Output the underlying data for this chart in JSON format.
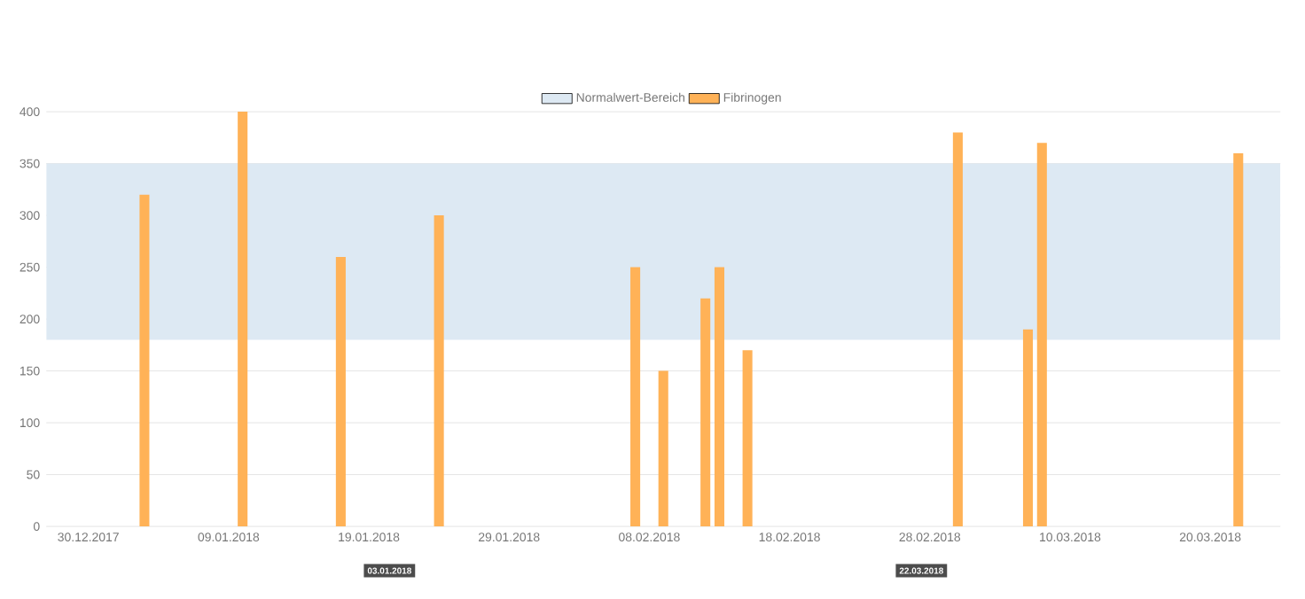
{
  "chart_data": {
    "type": "bar",
    "series": [
      {
        "name": "Fibrinogen",
        "color": "#ffb257",
        "x": [
          "2018-01-03",
          "2018-01-10",
          "2018-01-17",
          "2018-01-24",
          "2018-02-07",
          "2018-02-09",
          "2018-02-12",
          "2018-02-13",
          "2018-02-15",
          "2018-03-02",
          "2018-03-07",
          "2018-03-08",
          "2018-03-22"
        ],
        "values": [
          320,
          400,
          260,
          300,
          250,
          150,
          220,
          250,
          170,
          380,
          190,
          370,
          360
        ]
      }
    ],
    "xlim": [
      "2017-12-27",
      "2018-03-25"
    ],
    "xticks": [
      {
        "value": "2017-12-30",
        "label": "30.12.2017"
      },
      {
        "value": "2018-01-09",
        "label": "09.01.2018"
      },
      {
        "value": "2018-01-19",
        "label": "19.01.2018"
      },
      {
        "value": "2018-01-29",
        "label": "29.01.2018"
      },
      {
        "value": "2018-02-08",
        "label": "08.02.2018"
      },
      {
        "value": "2018-02-18",
        "label": "18.02.2018"
      },
      {
        "value": "2018-02-28",
        "label": "28.02.2018"
      },
      {
        "value": "2018-03-10",
        "label": "10.03.2018"
      },
      {
        "value": "2018-03-20",
        "label": "20.03.2018"
      }
    ],
    "ylim": [
      0,
      400
    ],
    "yticks": [
      0,
      50,
      100,
      150,
      200,
      250,
      300,
      350,
      400
    ],
    "bands": [
      {
        "axis": "y",
        "from": 180,
        "to": 350,
        "label": "Normalwert-Bereich",
        "color": "#dde9f3"
      }
    ],
    "grid": "y",
    "legend": "top",
    "annotations": [
      "03.01.2018",
      "22.03.2018"
    ]
  }
}
